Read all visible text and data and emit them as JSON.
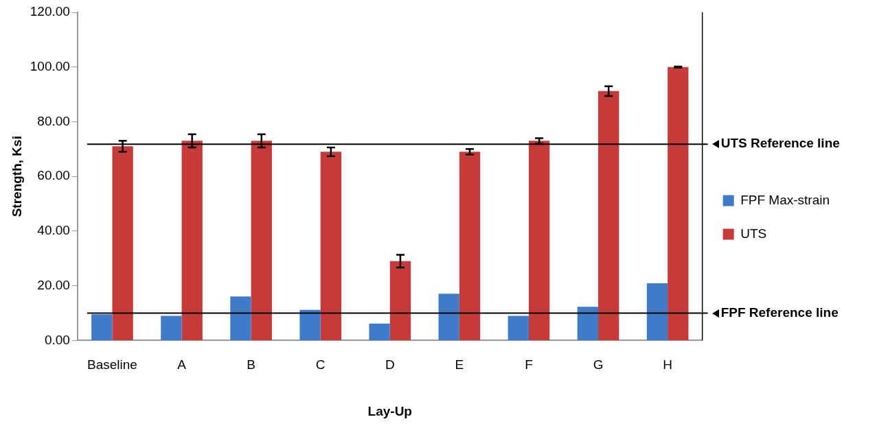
{
  "chart_data": {
    "type": "bar",
    "xlabel": "Lay-Up",
    "ylabel": "Strength, Ksi",
    "categories": [
      "Baseline",
      "A",
      "B",
      "C",
      "D",
      "E",
      "F",
      "G",
      "H"
    ],
    "series": [
      {
        "name": "FPF Max-strain",
        "color": "#3e7cc9",
        "values": [
          9.6,
          9.0,
          16.1,
          11.2,
          6.2,
          17.1,
          9.0,
          12.3,
          20.9
        ]
      },
      {
        "name": "UTS",
        "color": "#c63a3a",
        "values": [
          71,
          73,
          73,
          69,
          29,
          69,
          73,
          91.2,
          100
        ],
        "errors": [
          2,
          2.4,
          2.4,
          1.6,
          2.3,
          1,
          1,
          1.8,
          0.2
        ]
      }
    ],
    "ylim": [
      0,
      120
    ],
    "yticks": [
      {
        "value": 0,
        "label": "0.00"
      },
      {
        "value": 20,
        "label": "20.00"
      },
      {
        "value": 40,
        "label": "40.00"
      },
      {
        "value": 60,
        "label": "60.00"
      },
      {
        "value": 80,
        "label": "80.00"
      },
      {
        "value": 100,
        "label": "100.00"
      },
      {
        "value": 120,
        "label": "120.00"
      }
    ],
    "ref_lines": [
      {
        "axis": "y",
        "value": 71.8,
        "label": "UTS Reference line",
        "color": "#000000"
      },
      {
        "axis": "y",
        "value": 10,
        "label": "FPF Reference line",
        "color": "#000000"
      }
    ],
    "grid": false,
    "legend": "right"
  }
}
